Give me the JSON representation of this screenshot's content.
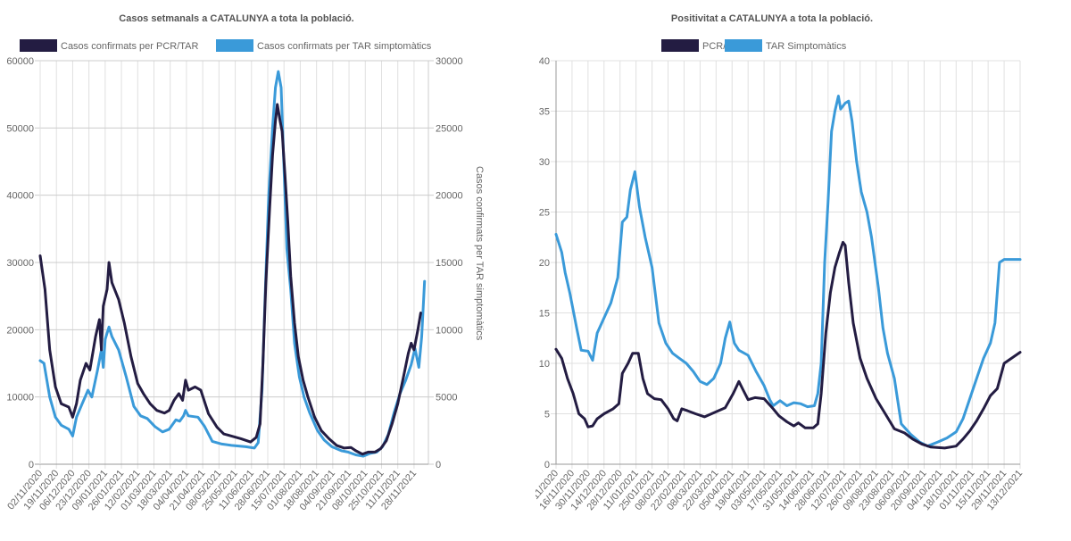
{
  "colors": {
    "pcr": "#231c42",
    "tar": "#3a9ad9",
    "grid": "#e0e0e0",
    "gridMajor": "#cccccc",
    "axis": "#999999"
  },
  "chart_data": [
    {
      "type": "line",
      "title": "Casos setmanals a CATALUNYA a tota la població.",
      "legend": [
        "Casos confirmats per PCR/TAR",
        "Casos confirmats per TAR simptomàtics"
      ],
      "legend_position": "top",
      "ylabel": "",
      "y2label": "Casos confirmats per TAR simptomàtics",
      "ylim": [
        0,
        60000
      ],
      "y2lim": [
        0,
        30000
      ],
      "yticks": [
        "0",
        "10000",
        "20000",
        "30000",
        "40000",
        "50000",
        "60000"
      ],
      "y2ticks": [
        "0",
        "5000",
        "10000",
        "15000",
        "20000",
        "25000",
        "30000"
      ],
      "x_unit": "days since 02/11/2020",
      "xlim": [
        0,
        406
      ],
      "tick_step_days": 17,
      "categories": [
        "02/11/2020",
        "19/11/2020",
        "06/12/2020",
        "23/12/2020",
        "09/01/2021",
        "26/01/2021",
        "12/02/2021",
        "01/03/2021",
        "18/03/2021",
        "04/04/2021",
        "21/04/2021",
        "08/05/2021",
        "25/05/2021",
        "11/06/2021",
        "28/06/2021",
        "15/07/2021",
        "01/08/2021",
        "18/08/2021",
        "04/09/2021",
        "21/09/2021",
        "08/10/2021",
        "25/10/2021",
        "11/11/2021",
        "28/11/2021"
      ],
      "series": [
        {
          "name": "Casos confirmats per PCR/TAR",
          "axis": "left",
          "x": [
            0,
            5,
            10,
            16,
            22,
            30,
            34,
            38,
            42,
            48,
            52,
            58,
            62,
            64,
            66,
            70,
            72,
            75,
            82,
            88,
            95,
            102,
            108,
            115,
            122,
            130,
            135,
            140,
            145,
            149,
            152,
            155,
            162,
            168,
            176,
            185,
            192,
            200,
            210,
            220,
            226,
            230,
            233,
            236,
            240,
            243,
            246,
            248,
            251,
            253,
            256,
            259,
            262,
            266,
            270,
            275,
            280,
            287,
            294,
            302,
            310,
            318,
            325,
            330,
            337,
            343,
            350,
            356,
            362,
            368,
            374,
            380,
            385,
            388,
            391,
            395,
            398
          ],
          "values": [
            31000,
            26000,
            17000,
            11500,
            9000,
            8500,
            7000,
            9000,
            12500,
            15000,
            14000,
            19000,
            21500,
            17000,
            23500,
            26000,
            30000,
            27000,
            24500,
            21000,
            16000,
            12000,
            10500,
            9000,
            8000,
            7600,
            8000,
            9500,
            10500,
            9500,
            12500,
            11000,
            11500,
            11000,
            7500,
            5500,
            4500,
            4200,
            3800,
            3300,
            4000,
            6000,
            15000,
            27000,
            38000,
            46000,
            51000,
            53500,
            51000,
            49500,
            43000,
            36000,
            28000,
            21000,
            16000,
            12500,
            10000,
            7000,
            5000,
            3800,
            2800,
            2400,
            2500,
            2000,
            1500,
            1800,
            1800,
            2300,
            3500,
            6000,
            9000,
            13000,
            16500,
            18000,
            17000,
            20000,
            22500
          ]
        },
        {
          "name": "Casos confirmats per TAR simptomàtics",
          "axis": "right",
          "x": [
            0,
            4,
            10,
            16,
            22,
            30,
            34,
            38,
            44,
            50,
            54,
            60,
            64,
            66,
            68,
            72,
            75,
            82,
            90,
            98,
            105,
            112,
            120,
            128,
            135,
            142,
            146,
            150,
            152,
            155,
            165,
            172,
            180,
            190,
            200,
            215,
            224,
            228,
            232,
            235,
            239,
            243,
            246,
            249,
            252,
            255,
            258,
            262,
            266,
            271,
            276,
            282,
            290,
            297,
            305,
            315,
            322,
            330,
            338,
            345,
            352,
            358,
            364,
            370,
            376,
            382,
            388,
            392,
            396,
            399,
            402
          ],
          "values": [
            7700,
            7500,
            5000,
            3500,
            2900,
            2600,
            2100,
            3500,
            4500,
            5500,
            5000,
            7000,
            8500,
            7200,
            9300,
            10200,
            9500,
            8500,
            6500,
            4300,
            3600,
            3400,
            2800,
            2400,
            2600,
            3300,
            3200,
            3600,
            4000,
            3600,
            3500,
            2800,
            1700,
            1500,
            1400,
            1300,
            1200,
            1600,
            5500,
            12000,
            20000,
            25000,
            28000,
            29200,
            28000,
            22000,
            16000,
            13000,
            9000,
            6500,
            5000,
            3800,
            2500,
            1800,
            1300,
            1000,
            900,
            700,
            600,
            800,
            900,
            1300,
            2200,
            3800,
            5200,
            6200,
            7400,
            8600,
            7200,
            9500,
            13600
          ]
        }
      ]
    },
    {
      "type": "line",
      "title": "Positivitat a CATALUNYA a tota la població.",
      "legend": [
        "PCR/TAR",
        "TAR Simptomàtics"
      ],
      "legend_position": "top",
      "ylim": [
        0,
        40
      ],
      "yticks": [
        "0",
        "5",
        "10",
        "15",
        "20",
        "25",
        "30",
        "35",
        "40"
      ],
      "x_unit": "days since 02/11/2020",
      "xlim": [
        0,
        406
      ],
      "tick_step_days": 14,
      "categories": [
        "02/11/2020",
        "16/11/2020",
        "30/11/2020",
        "14/12/2020",
        "28/12/2020",
        "11/01/2021",
        "25/01/2021",
        "08/02/2021",
        "22/02/2021",
        "08/03/2021",
        "22/03/2021",
        "05/04/2021",
        "19/04/2021",
        "03/05/2021",
        "17/05/2021",
        "31/05/2021",
        "14/06/2021",
        "28/06/2021",
        "12/07/2021",
        "26/07/2021",
        "09/08/2021",
        "23/08/2021",
        "06/09/2021",
        "20/09/2021",
        "04/10/2021",
        "18/10/2021",
        "01/11/2021",
        "15/11/2021",
        "29/11/2021",
        "13/12/2021"
      ],
      "series": [
        {
          "name": "PCR/TAR",
          "x": [
            0,
            5,
            10,
            15,
            20,
            25,
            28,
            32,
            36,
            42,
            50,
            55,
            58,
            63,
            67,
            72,
            76,
            80,
            86,
            92,
            98,
            103,
            106,
            110,
            115,
            122,
            130,
            136,
            142,
            148,
            155,
            160,
            164,
            168,
            174,
            182,
            190,
            195,
            202,
            208,
            212,
            218,
            225,
            229,
            232,
            236,
            240,
            244,
            248,
            251,
            253,
            256,
            260,
            266,
            272,
            280,
            288,
            296,
            305,
            312,
            320,
            328,
            340,
            350,
            356,
            362,
            368,
            374,
            380,
            386,
            392,
            406
          ],
          "values": [
            11.4,
            10.5,
            8.5,
            7,
            5,
            4.5,
            3.7,
            3.8,
            4.5,
            5,
            5.5,
            6,
            9,
            10,
            11,
            11,
            8.5,
            7,
            6.5,
            6.4,
            5.5,
            4.5,
            4.3,
            5.5,
            5.3,
            5,
            4.7,
            5,
            5.3,
            5.6,
            7,
            8.2,
            7.3,
            6.4,
            6.6,
            6.5,
            5.5,
            4.8,
            4.2,
            3.8,
            4.1,
            3.6,
            3.6,
            4,
            7,
            13,
            17,
            19.5,
            21,
            22,
            21.7,
            18,
            14,
            10.5,
            8.5,
            6.5,
            5,
            3.5,
            3.1,
            2.5,
            2,
            1.7,
            1.6,
            1.8,
            2.5,
            3.3,
            4.3,
            5.5,
            6.8,
            7.5,
            10,
            11.1
          ]
        },
        {
          "name": "TAR Simptomàtics",
          "x": [
            0,
            5,
            8,
            12,
            18,
            22,
            28,
            32,
            36,
            42,
            48,
            54,
            58,
            62,
            65,
            69,
            73,
            78,
            84,
            90,
            96,
            102,
            108,
            114,
            120,
            126,
            132,
            138,
            144,
            148,
            152,
            156,
            160,
            168,
            175,
            182,
            187,
            190,
            196,
            202,
            208,
            214,
            220,
            226,
            229,
            232,
            235,
            238,
            241,
            244,
            247,
            249,
            253,
            256,
            259,
            263,
            267,
            272,
            276,
            282,
            286,
            290,
            296,
            302,
            310,
            318,
            325,
            334,
            342,
            350,
            356,
            362,
            368,
            374,
            380,
            384,
            388,
            392,
            406
          ],
          "values": [
            22.8,
            21,
            19,
            17,
            13.5,
            11.3,
            11.2,
            10.3,
            13,
            14.5,
            16,
            18.5,
            24,
            24.5,
            27.2,
            29,
            25.5,
            22.5,
            19.5,
            14,
            12,
            11,
            10.5,
            10,
            9.2,
            8.2,
            7.9,
            8.5,
            10,
            12.5,
            14.1,
            12,
            11.3,
            10.8,
            9.2,
            7.8,
            6.4,
            5.8,
            6.3,
            5.8,
            6.1,
            6,
            5.7,
            5.8,
            7,
            10,
            20,
            26,
            33,
            35,
            36.5,
            35.2,
            35.8,
            36,
            34,
            30,
            27,
            25,
            22.5,
            17.5,
            13.5,
            11,
            8.5,
            4,
            3,
            2.2,
            1.8,
            2.2,
            2.6,
            3.2,
            4.5,
            6.5,
            8.5,
            10.5,
            12,
            14,
            20,
            20.3,
            20.3
          ]
        }
      ]
    }
  ]
}
